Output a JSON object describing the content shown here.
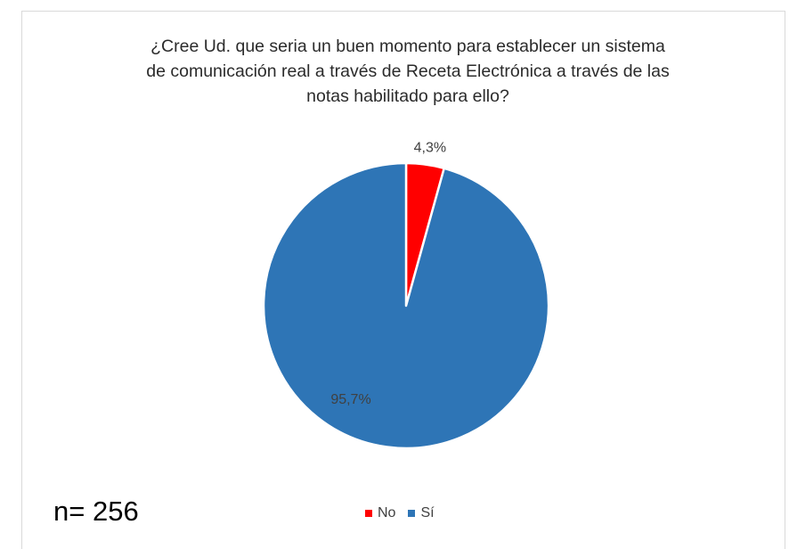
{
  "chart_data": {
    "type": "pie",
    "title_lines": [
      "¿Cree Ud. que seria un buen momento para establecer un sistema",
      "de comunicación real a través de Receta Electrónica a través de las",
      "notas habilitado para ello?"
    ],
    "slices": [
      {
        "label": "No",
        "value": 4.3,
        "display": "4,3%",
        "color": "#ff0000"
      },
      {
        "label": "Sí",
        "value": 95.7,
        "display": "95,7%",
        "color": "#2e75b6"
      }
    ],
    "legend_position": "bottom"
  },
  "annotation": {
    "sample_size": "n= 256"
  }
}
